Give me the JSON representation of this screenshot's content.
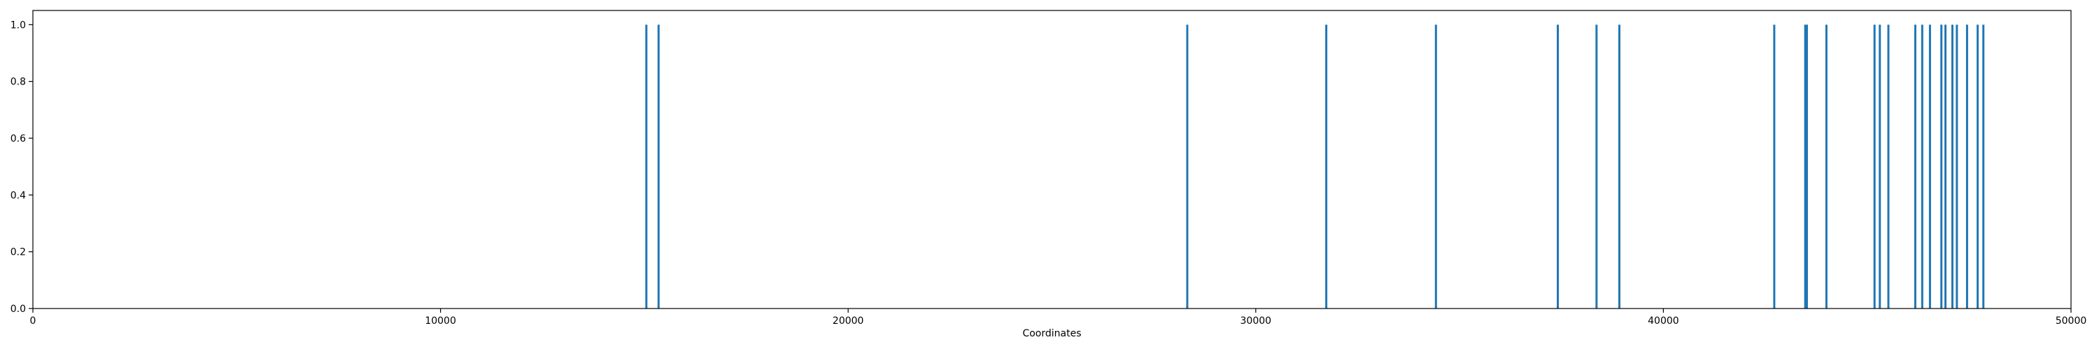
{
  "chart_data": {
    "type": "bar",
    "title": "",
    "xlabel": "Coordinates",
    "ylabel": "",
    "xlim": [
      0,
      50000
    ],
    "ylim": [
      0,
      1.05
    ],
    "grid": false,
    "x_ticks": [
      0,
      10000,
      20000,
      30000,
      40000,
      50000
    ],
    "x_tick_labels": [
      "0",
      "10000",
      "20000",
      "30000",
      "40000",
      "50000"
    ],
    "y_ticks": [
      0.0,
      0.2,
      0.4,
      0.6,
      0.8,
      1.0
    ],
    "y_tick_labels": [
      "0.0",
      "0.2",
      "0.4",
      "0.6",
      "0.8",
      "1.0"
    ],
    "bar_color": "#1f77b4",
    "series": [
      {
        "x": [
          15050,
          15350,
          28320,
          31730,
          34420,
          37410,
          38360,
          38920,
          42720,
          43480,
          43520,
          44000,
          45180,
          45310,
          45520,
          46180,
          46350,
          46540,
          46820,
          46920,
          47090,
          47200,
          47450,
          47710,
          47850
        ],
        "values": [
          1,
          1,
          1,
          1,
          1,
          1,
          1,
          1,
          1,
          1,
          1,
          1,
          1,
          1,
          1,
          1,
          1,
          1,
          1,
          1,
          1,
          1,
          1,
          1,
          1
        ]
      }
    ]
  }
}
